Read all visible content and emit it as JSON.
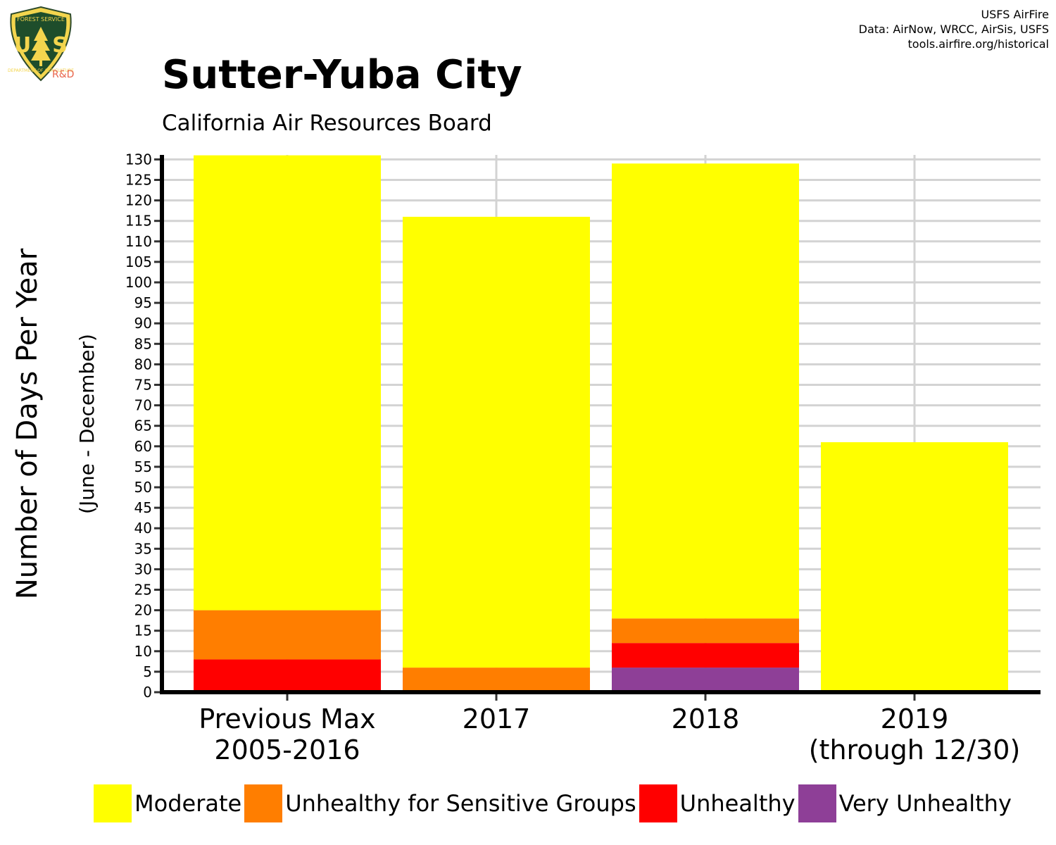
{
  "logo": {
    "icon": "usfs-shield-icon",
    "rd_label": "R&D"
  },
  "credits": {
    "line1": "USFS AirFire",
    "line2": "Data: AirNow, WRCC, AirSis, USFS",
    "line3": "tools.airfire.org/historical"
  },
  "chart_data": {
    "type": "bar",
    "stacked": true,
    "title": "Sutter-Yuba City",
    "subtitle": "California Air Resources Board",
    "ylabel": "Number of Days Per Year",
    "ylabel_sub": "(June - December)",
    "xlabel": "",
    "categories": [
      [
        "Previous Max",
        "2005-2016"
      ],
      [
        "2017"
      ],
      [
        "2018"
      ],
      [
        "2019",
        "(through 12/30)"
      ]
    ],
    "series": [
      {
        "name": "Very Unhealthy",
        "color": "#8e3f97",
        "values": [
          0,
          0,
          6,
          0
        ]
      },
      {
        "name": "Unhealthy",
        "color": "#ff0000",
        "values": [
          8,
          0,
          6,
          0
        ]
      },
      {
        "name": "Unhealthy for Sensitive Groups",
        "color": "#ff7e00",
        "values": [
          12,
          6,
          6,
          0
        ]
      },
      {
        "name": "Moderate",
        "color": "#ffff00",
        "values": [
          111,
          110,
          111,
          61
        ]
      }
    ],
    "legend_order": [
      "Moderate",
      "Unhealthy for Sensitive Groups",
      "Unhealthy",
      "Very Unhealthy"
    ],
    "ylim": [
      0,
      130
    ],
    "ytick_step": 5,
    "grid": true,
    "legend_position": "bottom"
  }
}
